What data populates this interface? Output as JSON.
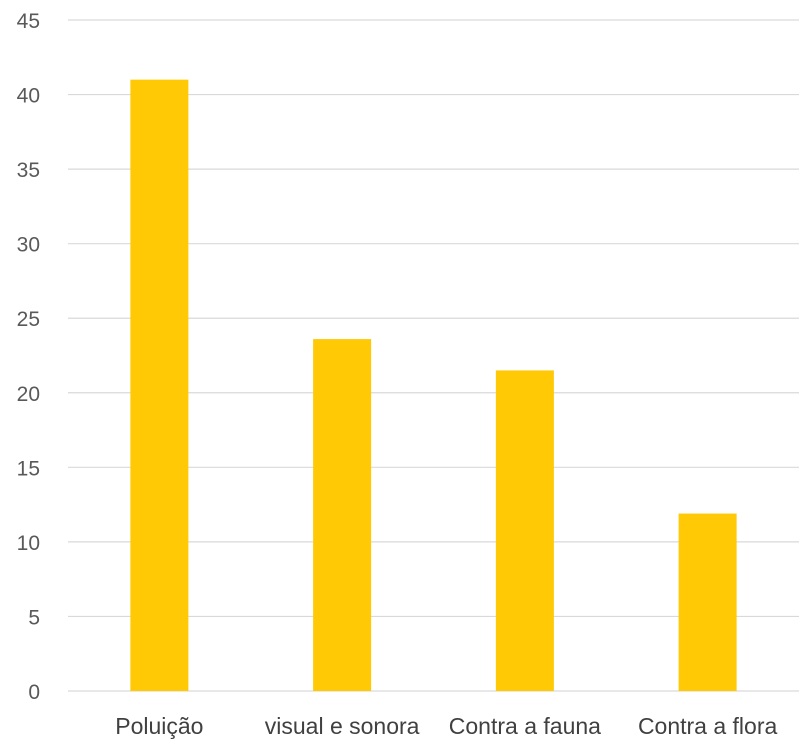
{
  "chart_data": {
    "type": "bar",
    "categories": [
      "Poluição",
      "visual e sonora",
      "Contra a fauna",
      "Contra a flora"
    ],
    "values": [
      41,
      23.6,
      21.5,
      11.9
    ],
    "title": "",
    "xlabel": "",
    "ylabel": "",
    "ylim": [
      0,
      45
    ],
    "yticks": [
      0,
      5,
      10,
      15,
      20,
      25,
      30,
      35,
      40,
      45
    ],
    "grid": true,
    "legend": "none",
    "bar_color": "#ffc905",
    "grid_color": "#d9d9d9"
  }
}
